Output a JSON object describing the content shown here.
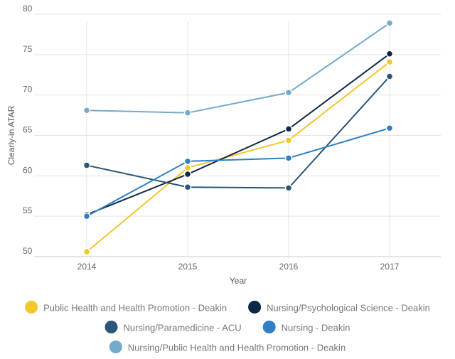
{
  "chart_data": {
    "type": "line",
    "title": "",
    "xlabel": "Year",
    "ylabel": "Clearly-in ATAR",
    "x": [
      "2014",
      "2015",
      "2016",
      "2017"
    ],
    "ylim": [
      50,
      80
    ],
    "yticks": [
      50,
      55,
      60,
      65,
      70,
      75,
      80
    ],
    "grid": true,
    "legend_position": "bottom",
    "series": [
      {
        "name": "Public Health and Health Promotion - Deakin",
        "color": "#f2c72b",
        "values": [
          50.6,
          61.0,
          64.4,
          74.1
        ]
      },
      {
        "name": "Nursing/Psychological Science - Deakin",
        "color": "#0f2746",
        "values": [
          55.2,
          60.2,
          65.8,
          75.1
        ]
      },
      {
        "name": "Nursing/Paramedicine - ACU",
        "color": "#2c5577",
        "values": [
          61.3,
          58.6,
          58.5,
          72.3
        ]
      },
      {
        "name": "Nursing - Deakin",
        "color": "#2f80c4",
        "values": [
          55.0,
          61.8,
          62.2,
          65.9
        ]
      },
      {
        "name": "Nursing/Public Health and Health Promotion - Deakin",
        "color": "#74aacc",
        "values": [
          68.1,
          67.8,
          70.3,
          78.9
        ]
      }
    ]
  }
}
